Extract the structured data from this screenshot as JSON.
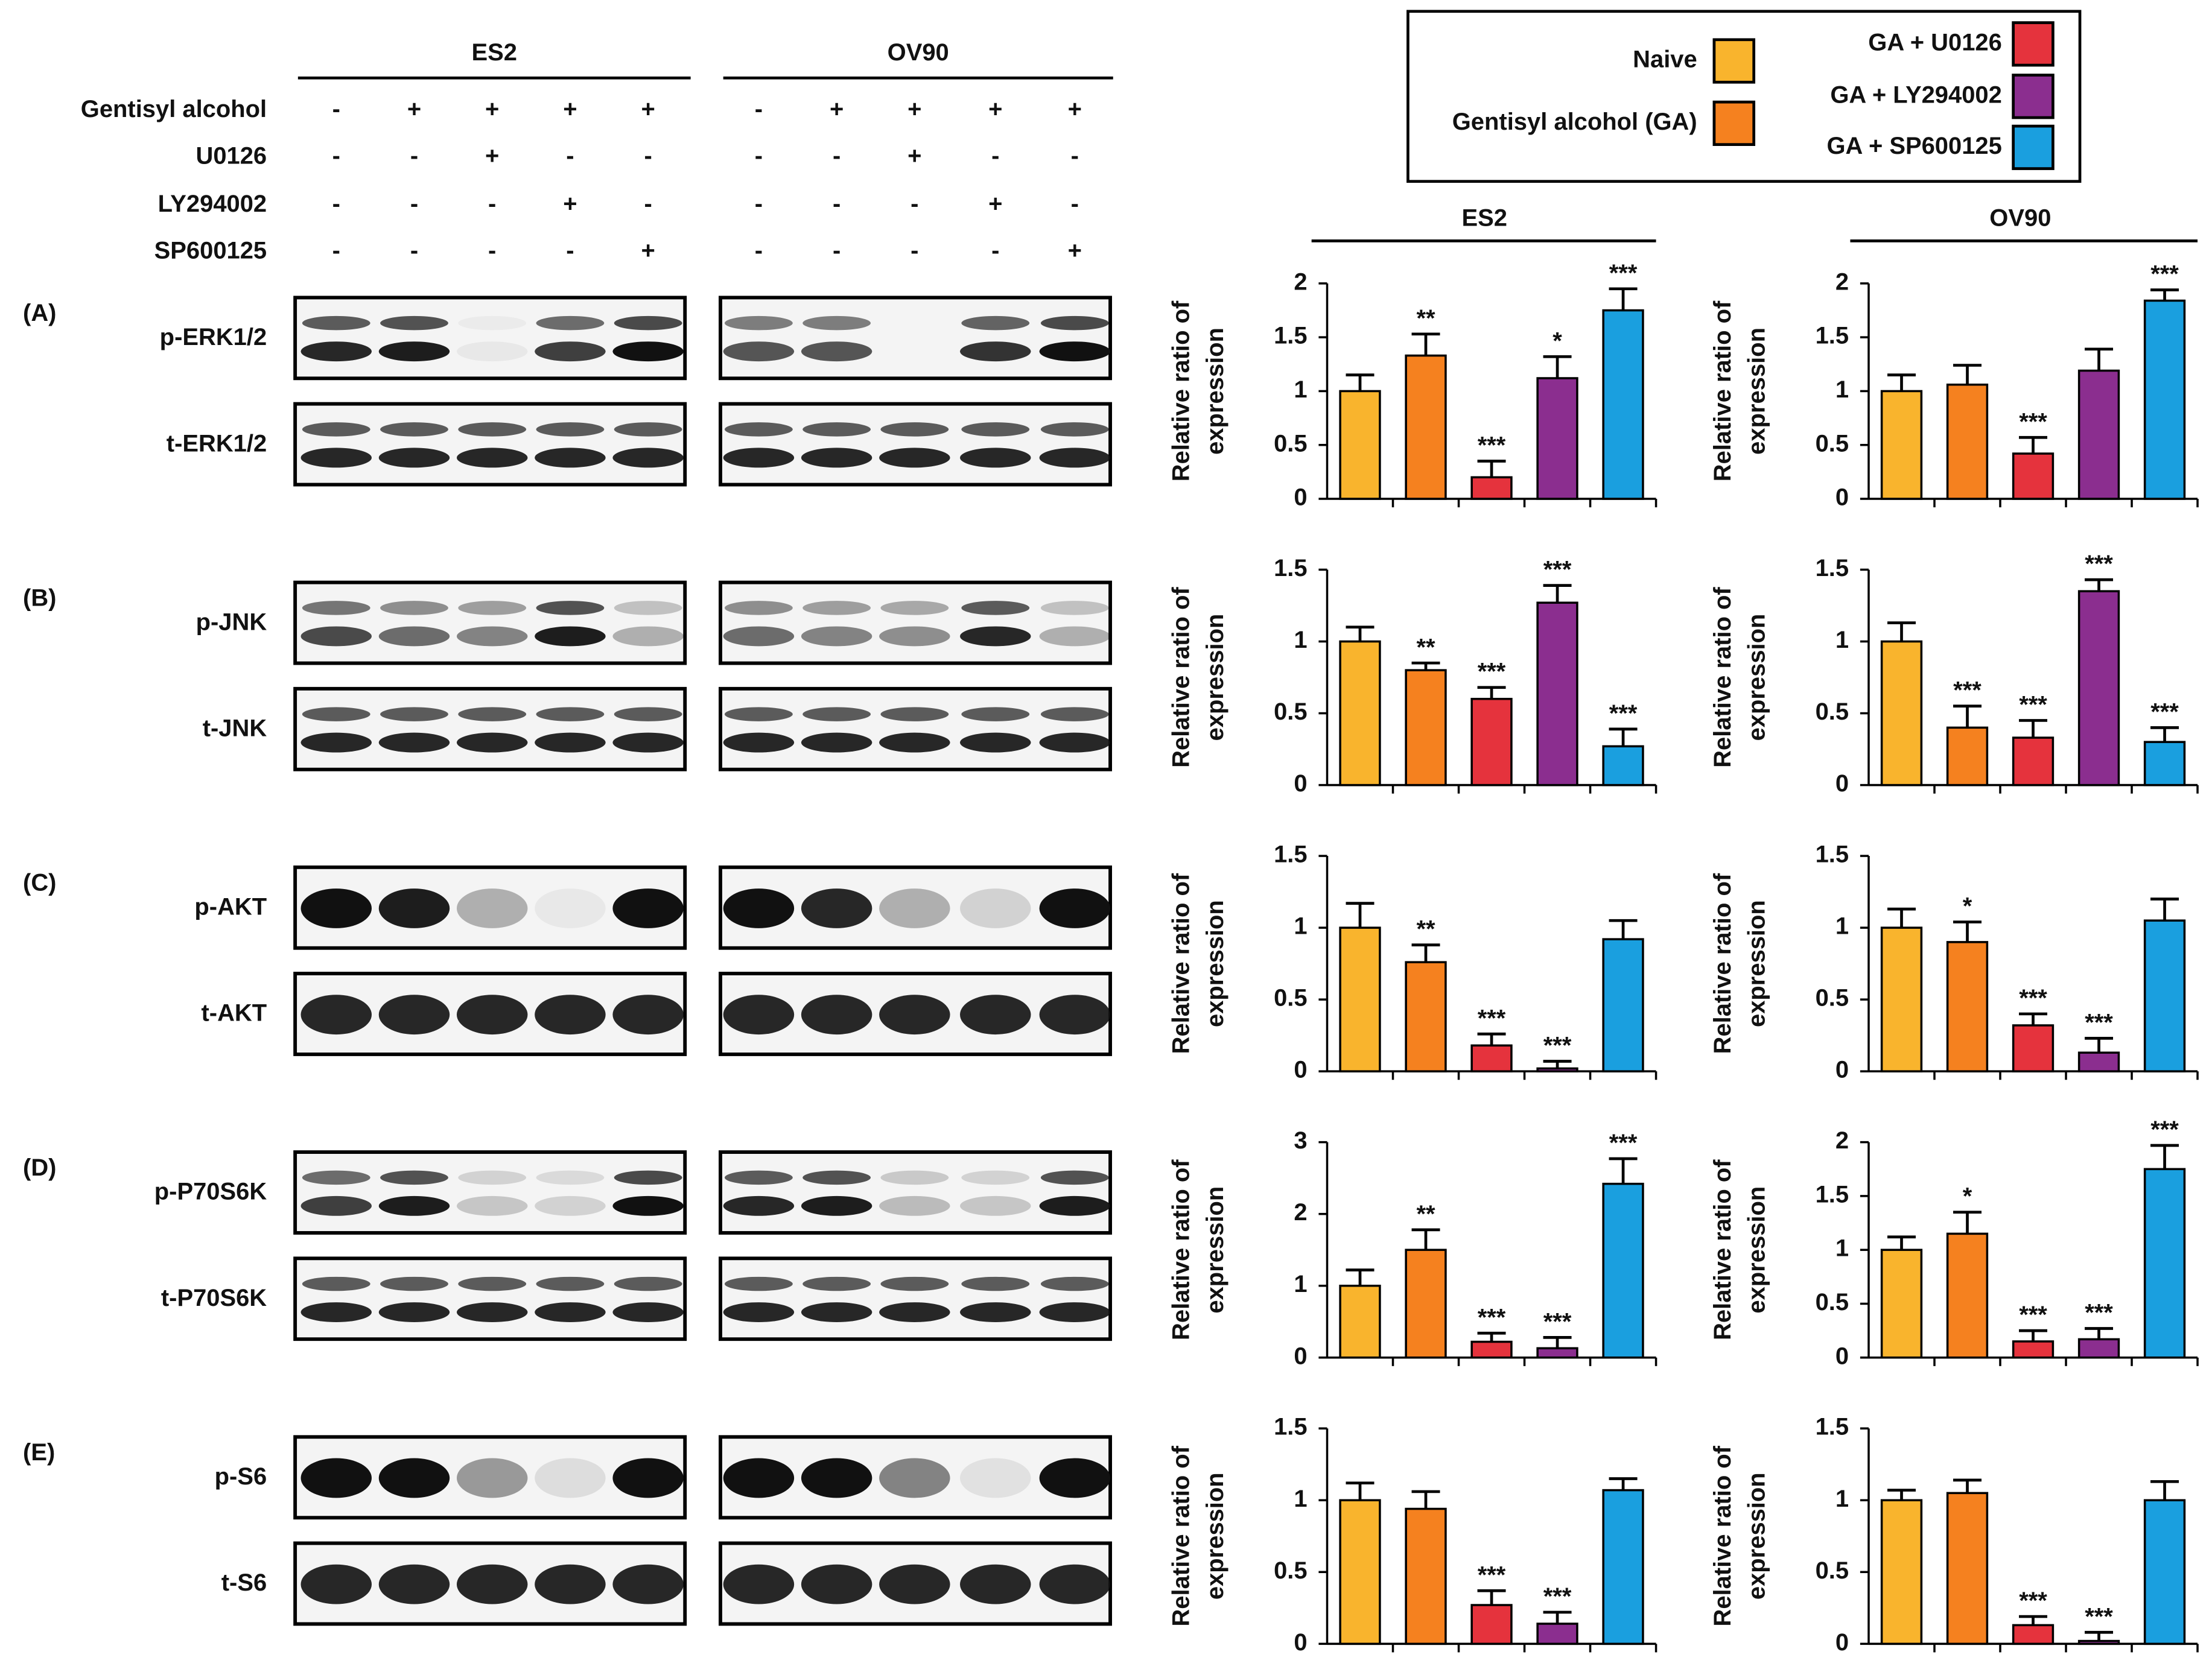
{
  "columns": [
    "ES2",
    "OV90"
  ],
  "treatments": [
    {
      "name": "Gentisyl alcohol",
      "signs": [
        "-",
        "+",
        "+",
        "+",
        "+",
        "-",
        "+",
        "+",
        "+",
        "+"
      ]
    },
    {
      "name": "U0126",
      "signs": [
        "-",
        "-",
        "+",
        "-",
        "-",
        "-",
        "-",
        "+",
        "-",
        "-"
      ]
    },
    {
      "name": "LY294002",
      "signs": [
        "-",
        "-",
        "-",
        "+",
        "-",
        "-",
        "-",
        "-",
        "+",
        "-"
      ]
    },
    {
      "name": "SP600125",
      "signs": [
        "-",
        "-",
        "-",
        "-",
        "+",
        "-",
        "-",
        "-",
        "-",
        "+"
      ]
    }
  ],
  "blots": [
    {
      "panel": "(A)",
      "phospho": "p-ERK1/2",
      "total": "t-ERK1/2"
    },
    {
      "panel": "(B)",
      "phospho": "p-JNK",
      "total": "t-JNK"
    },
    {
      "panel": "(C)",
      "phospho": "p-AKT",
      "total": "t-AKT"
    },
    {
      "panel": "(D)",
      "phospho": "p-P70S6K",
      "total": "t-P70S6K"
    },
    {
      "panel": "(E)",
      "phospho": "p-S6",
      "total": "t-S6"
    }
  ],
  "legend": [
    {
      "name": "Naive",
      "color": "#f9b42d"
    },
    {
      "name": "Gentisyl alcohol (GA)",
      "color": "#f5811f"
    },
    {
      "name": "GA + U0126",
      "color": "#e5333d"
    },
    {
      "name": "GA + LY294002",
      "color": "#8b2e8f"
    },
    {
      "name": "GA + SP600125",
      "color": "#1a9fdf"
    }
  ],
  "chart_data": [
    {
      "type": "bar",
      "ylabel": [
        "Relative ratio of",
        "expression"
      ],
      "ylim": [
        0,
        2
      ],
      "yticks": [
        0,
        0.5,
        1,
        1.5,
        2
      ],
      "values": [
        1.0,
        1.33,
        0.2,
        1.12,
        1.75
      ],
      "errors": [
        0.15,
        0.2,
        0.15,
        0.2,
        0.2
      ],
      "annotations": [
        null,
        "**",
        "***",
        "*",
        "***"
      ]
    },
    {
      "type": "bar",
      "ylabel": [
        "Relative ratio of",
        "expression"
      ],
      "ylim": [
        0,
        2
      ],
      "yticks": [
        0,
        0.5,
        1,
        1.5,
        2
      ],
      "values": [
        1.0,
        1.06,
        0.42,
        1.19,
        1.84
      ],
      "errors": [
        0.15,
        0.18,
        0.15,
        0.2,
        0.1
      ],
      "annotations": [
        null,
        null,
        "***",
        null,
        "***"
      ]
    },
    {
      "type": "bar",
      "ylabel": [
        "Relative ratio of",
        "expression"
      ],
      "ylim": [
        0,
        1.5
      ],
      "yticks": [
        0,
        0.5,
        1,
        1.5
      ],
      "values": [
        1.0,
        0.8,
        0.6,
        1.27,
        0.27
      ],
      "errors": [
        0.1,
        0.05,
        0.08,
        0.12,
        0.12
      ],
      "annotations": [
        null,
        "**",
        "***",
        "***",
        "***"
      ]
    },
    {
      "type": "bar",
      "ylabel": [
        "Relative ratio of",
        "expression"
      ],
      "ylim": [
        0,
        1.5
      ],
      "yticks": [
        0,
        0.5,
        1,
        1.5
      ],
      "values": [
        1.0,
        0.4,
        0.33,
        1.35,
        0.3
      ],
      "errors": [
        0.13,
        0.15,
        0.12,
        0.08,
        0.1
      ],
      "annotations": [
        null,
        "***",
        "***",
        "***",
        "***"
      ]
    },
    {
      "type": "bar",
      "ylabel": [
        "Relative ratio of",
        "expression"
      ],
      "ylim": [
        0,
        1.5
      ],
      "yticks": [
        0,
        0.5,
        1,
        1.5
      ],
      "values": [
        1.0,
        0.76,
        0.18,
        0.02,
        0.92
      ],
      "errors": [
        0.17,
        0.12,
        0.08,
        0.05,
        0.13
      ],
      "annotations": [
        null,
        "**",
        "***",
        "***",
        null
      ]
    },
    {
      "type": "bar",
      "ylabel": [
        "Relative ratio of",
        "expression"
      ],
      "ylim": [
        0,
        1.5
      ],
      "yticks": [
        0,
        0.5,
        1,
        1.5
      ],
      "values": [
        1.0,
        0.9,
        0.32,
        0.13,
        1.05
      ],
      "errors": [
        0.13,
        0.14,
        0.08,
        0.1,
        0.15
      ],
      "annotations": [
        null,
        "*",
        "***",
        "***",
        null
      ]
    },
    {
      "type": "bar",
      "ylabel": [
        "Relative ratio of",
        "expression"
      ],
      "ylim": [
        0,
        3
      ],
      "yticks": [
        0,
        1,
        2,
        3
      ],
      "values": [
        1.0,
        1.5,
        0.22,
        0.13,
        2.42
      ],
      "errors": [
        0.22,
        0.28,
        0.12,
        0.15,
        0.35
      ],
      "annotations": [
        null,
        "**",
        "***",
        "***",
        "***"
      ]
    },
    {
      "type": "bar",
      "ylabel": [
        "Relative ratio of",
        "expression"
      ],
      "ylim": [
        0,
        2
      ],
      "yticks": [
        0,
        0.5,
        1,
        1.5,
        2
      ],
      "values": [
        1.0,
        1.15,
        0.15,
        0.17,
        1.75
      ],
      "errors": [
        0.12,
        0.2,
        0.1,
        0.1,
        0.22
      ],
      "annotations": [
        null,
        "*",
        "***",
        "***",
        "***"
      ]
    },
    {
      "type": "bar",
      "ylabel": [
        "Relative ratio of",
        "expression"
      ],
      "ylim": [
        0,
        1.5
      ],
      "yticks": [
        0,
        0.5,
        1,
        1.5
      ],
      "values": [
        1.0,
        0.94,
        0.27,
        0.14,
        1.07
      ],
      "errors": [
        0.12,
        0.12,
        0.1,
        0.08,
        0.08
      ],
      "annotations": [
        null,
        null,
        "***",
        "***",
        null
      ]
    },
    {
      "type": "bar",
      "ylabel": [
        "Relative ratio of",
        "expression"
      ],
      "ylim": [
        0,
        1.5
      ],
      "yticks": [
        0,
        0.5,
        1,
        1.5
      ],
      "values": [
        1.0,
        1.05,
        0.13,
        0.02,
        1.0
      ],
      "errors": [
        0.07,
        0.09,
        0.06,
        0.06,
        0.13
      ],
      "annotations": [
        null,
        null,
        "***",
        "***",
        null
      ]
    }
  ]
}
